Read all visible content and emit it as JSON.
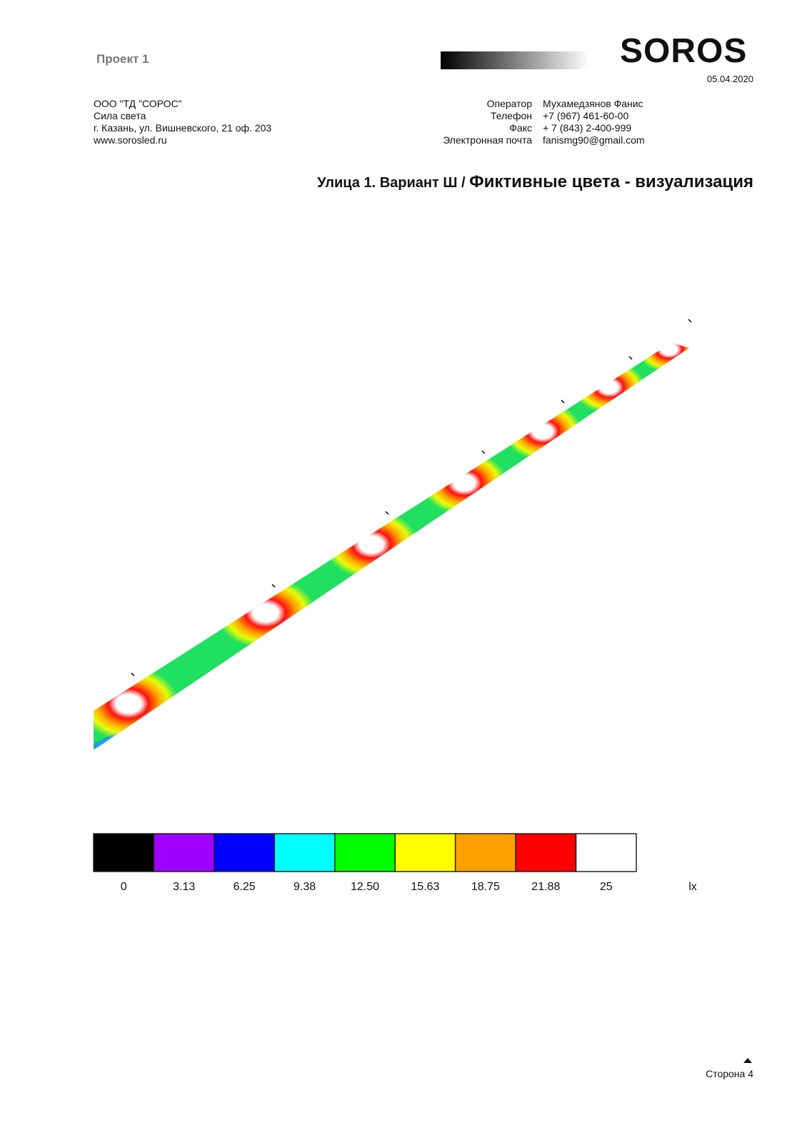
{
  "header": {
    "project": "Проект 1",
    "logo": "SOROS",
    "date": "05.04.2020"
  },
  "company": {
    "lines": [
      "ООО \"ТД \"СОРОС\"",
      "Сила света",
      "г. Казань, ул. Вишневского, 21 оф. 203",
      "www.sorosled.ru"
    ]
  },
  "contact": {
    "rows": [
      [
        "Оператор",
        "Мухамедзянов Фанис"
      ],
      [
        "Телефон",
        "+7 (967) 461-60-00"
      ],
      [
        "Факс",
        "+ 7 (843) 2-400-999"
      ],
      [
        "Электронная почта",
        "fanismg90@gmail.com"
      ]
    ]
  },
  "title": {
    "part1": "Улица 1. Вариант Ш / ",
    "part2": "Фиктивные цвета - визуализация"
  },
  "scale": {
    "labels": [
      "0",
      "3.13",
      "6.25",
      "9.38",
      "12.50",
      "15.63",
      "18.75",
      "21.88",
      "25"
    ],
    "colors": [
      "#000000",
      "#a000ff",
      "#0000ff",
      "#00ffff",
      "#00ff00",
      "#ffff00",
      "#ffa000",
      "#ff0000",
      "#ffffff"
    ],
    "unit": "lx"
  },
  "footer": {
    "page": "Сторона 4"
  }
}
